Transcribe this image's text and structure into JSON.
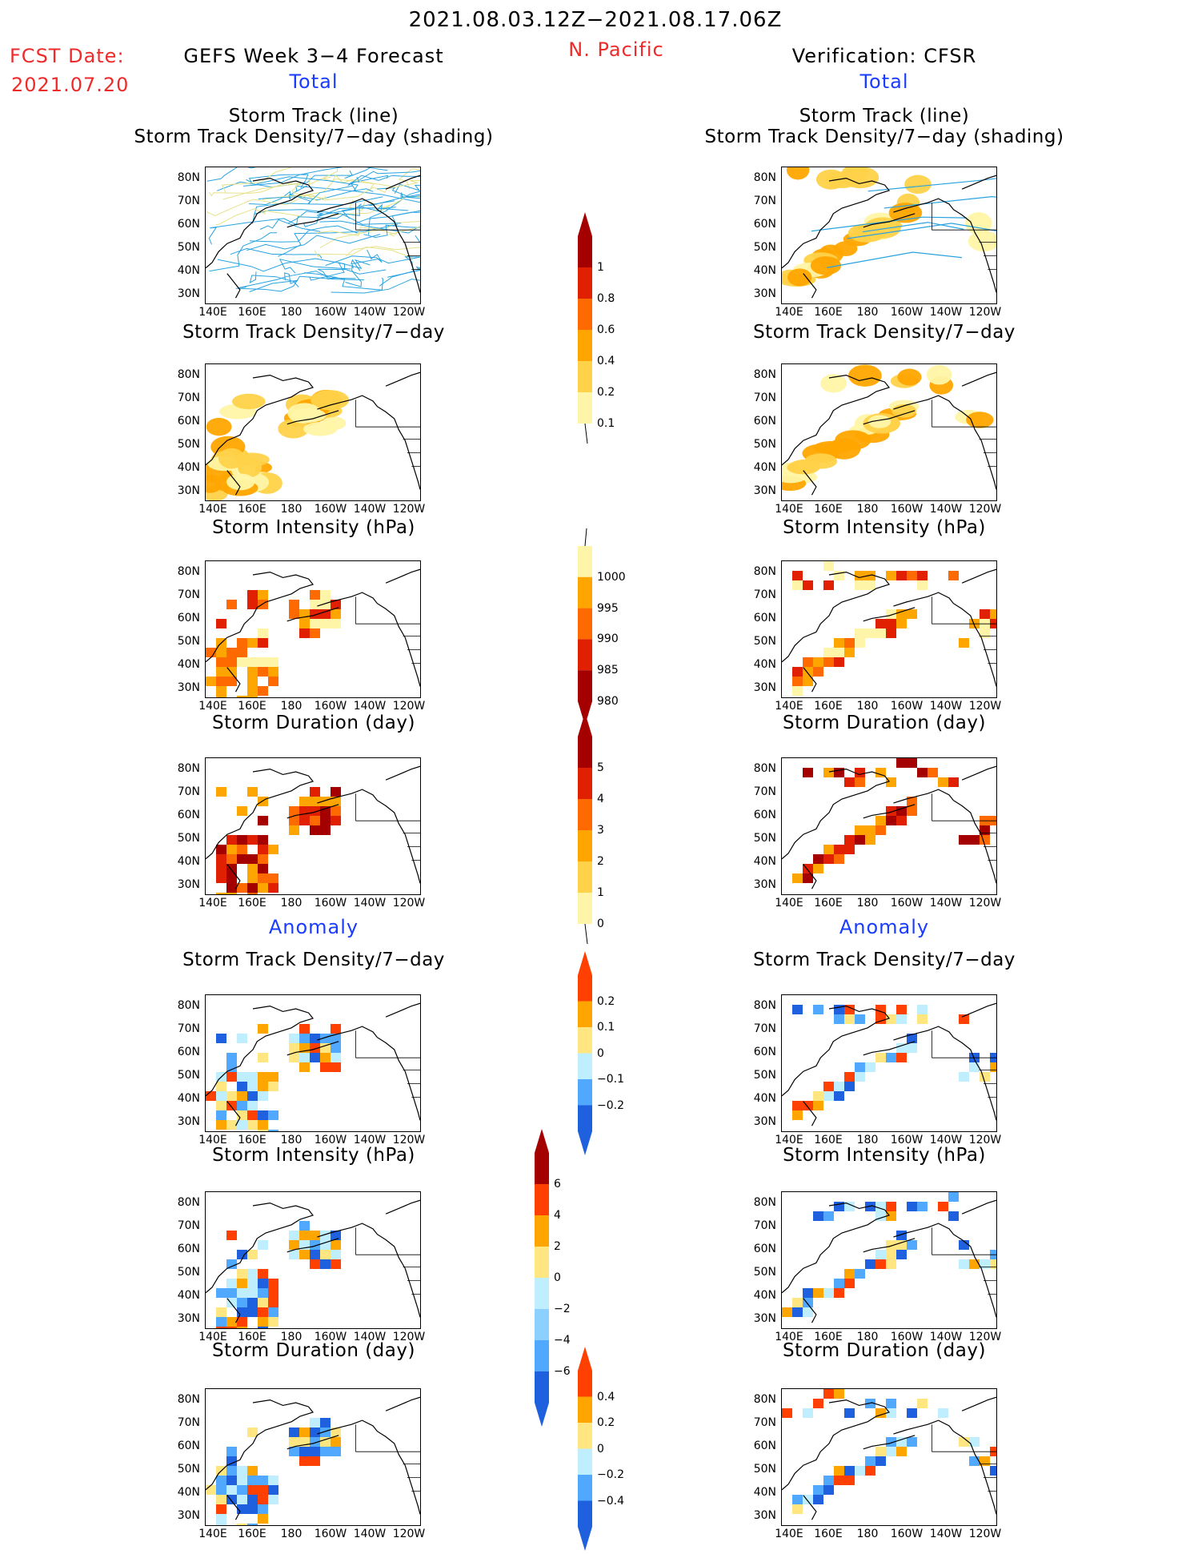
{
  "header": {
    "date_range": "2021.08.03.12Z−2021.08.17.06Z",
    "region": "N. Pacific",
    "fcst_label": "FCST Date:",
    "fcst_date": "2021.07.20",
    "forecast_title": "GEFS Week 3−4 Forecast",
    "verification_title": "Verification: CFSR",
    "total_label_left": "Total",
    "total_label_right": "Total",
    "anomaly_label_left": "Anomaly",
    "anomaly_label_right": "Anomaly"
  },
  "panel_titles": {
    "track_line": "Storm Track (line)",
    "track_shading": "Storm Track Density/7−day (shading)",
    "density": "Storm Track Density/7−day",
    "intensity": "Storm Intensity (hPa)",
    "duration": "Storm Duration (day)"
  },
  "map_axes": {
    "lat_labels": [
      "80N",
      "70N",
      "60N",
      "50N",
      "40N",
      "30N"
    ],
    "lon_labels": [
      "140E",
      "160E",
      "180",
      "160W",
      "140W",
      "120W"
    ]
  },
  "colorbars": {
    "density_total": {
      "labels": [
        "1",
        "0.8",
        "0.6",
        "0.4",
        "0.2",
        "0.1"
      ],
      "colors": [
        "#a50000",
        "#e02000",
        "#ff6a00",
        "#ffa500",
        "#ffd24a",
        "#fff5a8"
      ]
    },
    "intensity_total": {
      "labels": [
        "1000",
        "995",
        "990",
        "985",
        "980"
      ],
      "colors": [
        "#fff5a8",
        "#ffa500",
        "#ff6a00",
        "#e02000",
        "#a50000"
      ]
    },
    "duration_total": {
      "labels": [
        "5",
        "4",
        "3",
        "2",
        "1",
        "0"
      ],
      "colors": [
        "#a50000",
        "#e02000",
        "#ff6a00",
        "#ffa500",
        "#ffd24a",
        "#fff5a8"
      ]
    },
    "density_anom": {
      "labels": [
        "0.2",
        "0.1",
        "0",
        "−0.1",
        "−0.2"
      ],
      "colors": [
        "#ff4000",
        "#ffa500",
        "#ffe680",
        "#bfefff",
        "#50a8ff",
        "#1e60dd"
      ]
    },
    "intensity_anom": {
      "labels": [
        "6",
        "4",
        "2",
        "0",
        "−2",
        "−4",
        "−6"
      ],
      "colors": [
        "#a50000",
        "#ff4000",
        "#ffa500",
        "#ffe680",
        "#bfefff",
        "#8cd0ff",
        "#50a8ff",
        "#1e60dd"
      ]
    },
    "duration_anom": {
      "labels": [
        "0.4",
        "0.2",
        "0",
        "−0.2",
        "−0.4"
      ],
      "colors": [
        "#ff4000",
        "#ffa500",
        "#ffe680",
        "#bfefff",
        "#50a8ff",
        "#1e60dd"
      ]
    }
  }
}
